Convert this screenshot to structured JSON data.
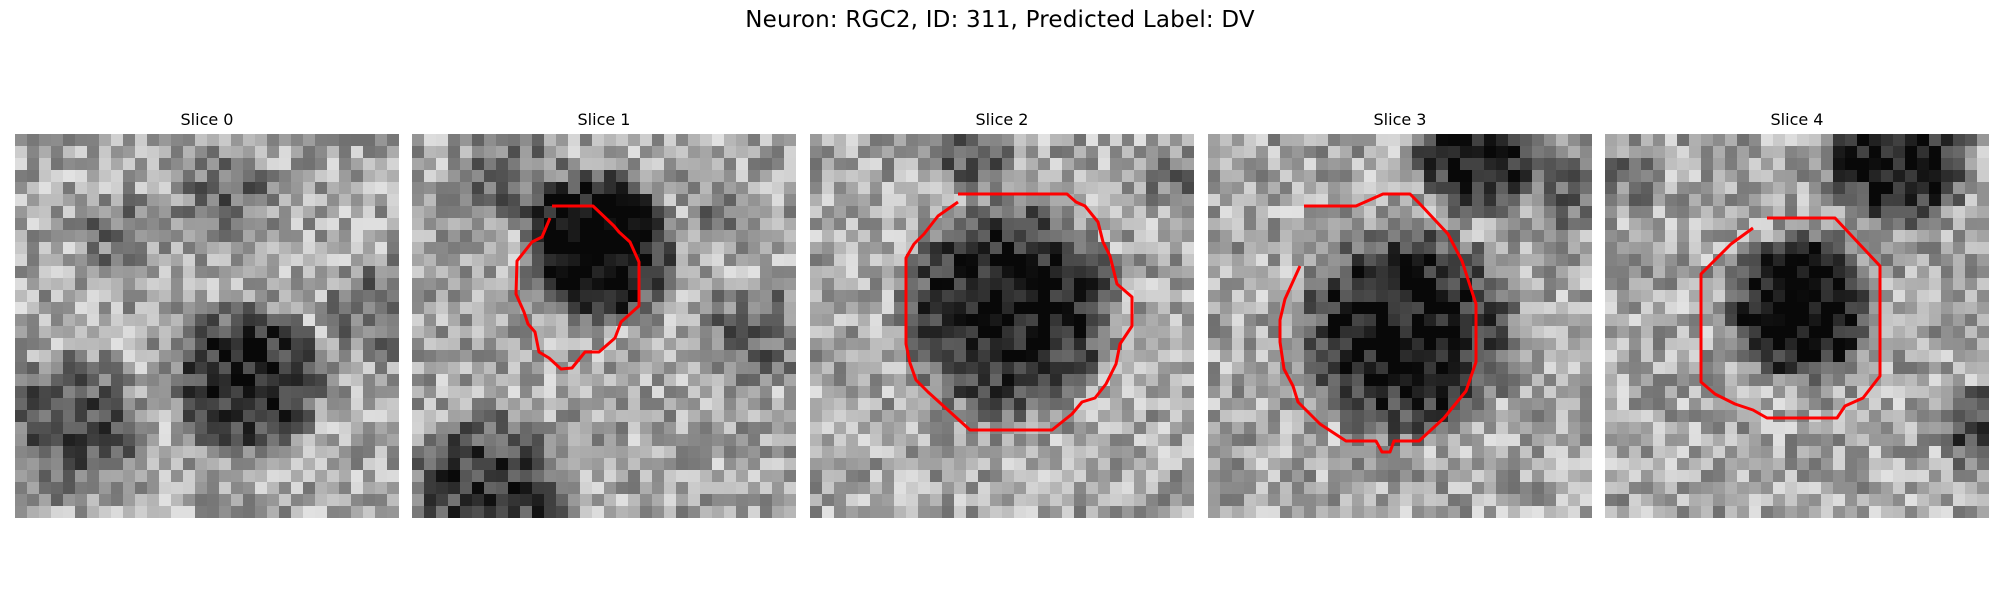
{
  "figure_title": "Neuron: RGC2, ID: 311, Predicted Label: DV",
  "contour_color": "#ff0000",
  "colormap": "gray",
  "panels": [
    {
      "title": "Slice 0",
      "has_contour": false,
      "blobs": []
    },
    {
      "title": "Slice 1",
      "has_contour": true,
      "blobs": []
    },
    {
      "title": "Slice 2",
      "has_contour": true,
      "blobs": []
    },
    {
      "title": "Slice 3",
      "has_contour": true,
      "blobs": []
    },
    {
      "title": "Slice 4",
      "has_contour": true,
      "blobs": []
    }
  ]
}
